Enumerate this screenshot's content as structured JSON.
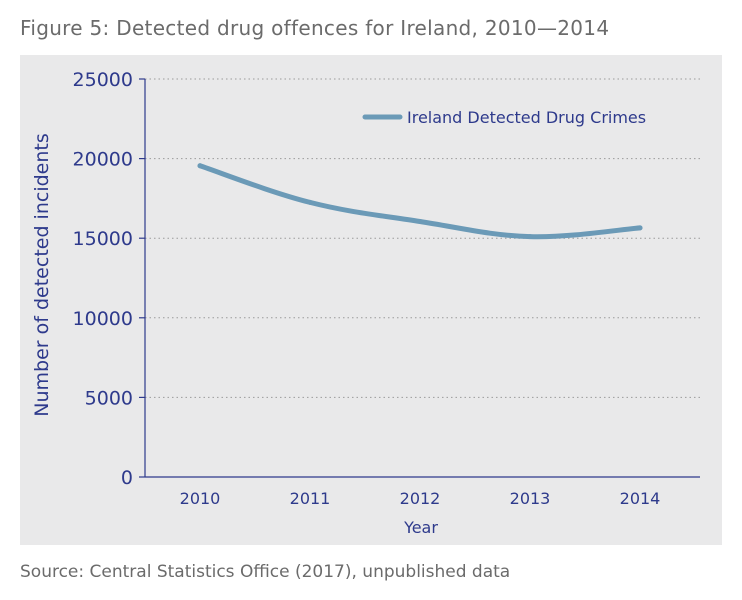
{
  "figure": {
    "title": "Figure 5: Detected drug offences for Ireland, 2010—2014",
    "source": "Source: Central Statistics Office (2017), unpublished data"
  },
  "chart_data": {
    "type": "line",
    "title": "",
    "xlabel": "Year",
    "ylabel": "Number of detected incidents",
    "categories": [
      "2010",
      "2011",
      "2012",
      "2013",
      "2014"
    ],
    "yticks": [
      "0",
      "5000",
      "10000",
      "15000",
      "20000",
      "25000"
    ],
    "ylim": [
      0,
      25000
    ],
    "grid": "horizontal dotted",
    "legend_position": "top-right",
    "series": [
      {
        "name": "Ireland Detected Drug Crimes",
        "color": "#6b9ab7",
        "values": [
          19550,
          17250,
          16050,
          15100,
          15650
        ]
      }
    ],
    "colors": {
      "axis": "#2e3a8c",
      "grid": "#9a9a9a",
      "panel": "#e9e9ea"
    }
  }
}
